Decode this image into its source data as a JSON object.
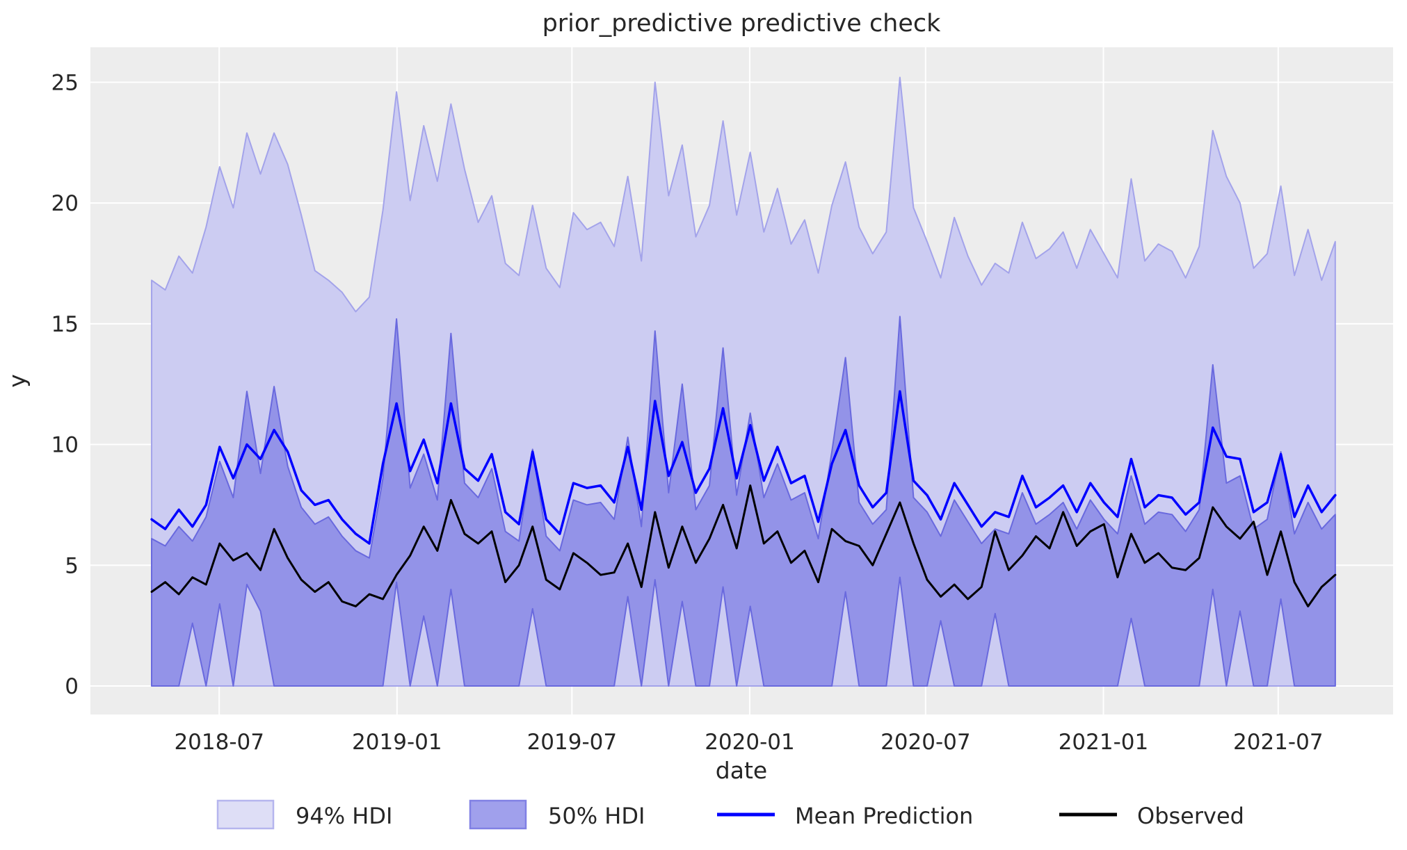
{
  "title": "prior_predictive predictive check",
  "axes": {
    "xlabel": "date",
    "ylabel": "y",
    "yticks": [
      0,
      5,
      10,
      15,
      20,
      25
    ],
    "xticks": [
      {
        "label": "2018-07",
        "f": 0.0571
      },
      {
        "label": "2019-01",
        "f": 0.2073
      },
      {
        "label": "2019-07",
        "f": 0.3551
      },
      {
        "label": "2020-01",
        "f": 0.5053
      },
      {
        "label": "2020-07",
        "f": 0.6539
      },
      {
        "label": "2021-01",
        "f": 0.8041
      },
      {
        "label": "2021-07",
        "f": 0.9518
      }
    ]
  },
  "legend": {
    "hdi94_label": "94% HDI",
    "hdi50_label": "50% HDI",
    "mean_label": "Mean Prediction",
    "observed_label": "Observed"
  },
  "colors": {
    "plot_background": "#ededed",
    "gridline": "#ffffff",
    "hdi94_fill": "#ccccf2",
    "hdi94_edge": "#a3a3ea",
    "hdi50_fill": "#9393e8",
    "hdi50_edge": "#6969de",
    "mean_line": "#0000ff",
    "observed_line": "#000000",
    "legend_hdi94_fill": "#dedef6",
    "legend_hdi94_edge": "#b5b5ee",
    "legend_hdi50_fill": "#a0a0ec",
    "legend_hdi50_edge": "#8080e4",
    "text": "#262626"
  },
  "chart_data": {
    "type": "area",
    "title": "prior_predictive predictive check",
    "xlabel": "date",
    "ylabel": "y",
    "x_range_estimate": [
      "2018-04-22",
      "2021-08-29"
    ],
    "n_points": 88,
    "ylim": [
      -1.18,
      26.45
    ],
    "grid": true,
    "legend_position": "bottom-center",
    "series": [
      {
        "name": "94% HDI",
        "type": "band",
        "lower": 0,
        "upper": [
          16.8,
          16.4,
          17.8,
          17.1,
          19.0,
          21.5,
          19.8,
          22.9,
          21.2,
          22.9,
          21.6,
          19.5,
          17.2,
          16.8,
          16.3,
          15.5,
          16.1,
          19.7,
          24.6,
          20.1,
          23.2,
          20.9,
          24.1,
          21.4,
          19.2,
          20.3,
          17.5,
          17.0,
          19.9,
          17.3,
          16.5,
          19.6,
          18.9,
          19.2,
          18.2,
          21.1,
          17.6,
          25.0,
          20.3,
          22.4,
          18.6,
          19.9,
          23.4,
          19.5,
          22.1,
          18.8,
          20.6,
          18.3,
          19.3,
          17.1,
          19.9,
          21.7,
          19.0,
          17.9,
          18.8,
          25.2,
          19.8,
          18.4,
          16.9,
          19.4,
          17.8,
          16.6,
          17.5,
          17.1,
          19.2,
          17.7,
          18.1,
          18.8,
          17.3,
          18.9,
          17.9,
          16.9,
          21.0,
          17.6,
          18.3,
          18.0,
          16.9,
          18.2,
          23.0,
          21.1,
          20.0,
          17.3,
          17.9,
          20.7,
          17.0,
          18.9,
          16.8,
          18.4
        ]
      },
      {
        "name": "50% HDI",
        "type": "band",
        "lower": [
          0,
          0,
          0,
          2.6,
          0,
          3.4,
          0,
          4.2,
          3.1,
          0,
          0,
          0,
          0,
          0,
          0,
          0,
          0,
          0,
          4.3,
          0,
          2.9,
          0,
          4.0,
          0,
          0,
          0,
          0,
          0,
          3.2,
          0,
          0,
          0,
          0,
          0,
          0,
          3.7,
          0,
          4.4,
          0,
          3.5,
          0,
          0,
          4.1,
          0,
          3.3,
          0,
          0,
          0,
          0,
          0,
          0,
          3.9,
          0,
          0,
          0,
          4.5,
          0,
          0,
          2.7,
          0,
          0,
          0,
          3.0,
          0,
          0,
          0,
          0,
          0,
          0,
          0,
          0,
          0,
          2.8,
          0,
          0,
          0,
          0,
          0,
          4.0,
          0,
          3.1,
          0,
          0,
          3.6,
          0,
          0,
          0,
          0
        ],
        "upper": [
          6.1,
          5.8,
          6.6,
          6.0,
          7.0,
          9.3,
          7.8,
          12.2,
          8.8,
          12.4,
          9.1,
          7.4,
          6.7,
          7.0,
          6.2,
          5.6,
          5.3,
          8.6,
          15.2,
          8.2,
          9.6,
          7.7,
          14.6,
          8.4,
          7.8,
          9.0,
          6.4,
          6.0,
          9.8,
          6.2,
          5.6,
          7.7,
          7.5,
          7.6,
          6.9,
          10.3,
          6.6,
          14.7,
          8.0,
          12.5,
          7.3,
          8.3,
          14.0,
          7.9,
          11.3,
          7.8,
          9.2,
          7.7,
          8.0,
          6.1,
          9.7,
          13.6,
          7.6,
          6.7,
          7.3,
          15.3,
          7.8,
          7.2,
          6.2,
          7.7,
          6.8,
          5.9,
          6.5,
          6.3,
          8.0,
          6.7,
          7.1,
          7.6,
          6.5,
          7.7,
          6.9,
          6.3,
          8.7,
          6.7,
          7.2,
          7.1,
          6.4,
          7.3,
          13.3,
          8.4,
          8.7,
          6.5,
          6.9,
          9.7,
          6.3,
          7.6,
          6.5,
          7.1
        ]
      },
      {
        "name": "Mean Prediction",
        "type": "line",
        "values": [
          6.9,
          6.5,
          7.3,
          6.6,
          7.5,
          9.9,
          8.6,
          10.0,
          9.4,
          10.6,
          9.7,
          8.1,
          7.5,
          7.7,
          6.9,
          6.3,
          5.9,
          9.2,
          11.7,
          8.9,
          10.2,
          8.4,
          11.7,
          9.0,
          8.5,
          9.6,
          7.2,
          6.7,
          9.7,
          6.9,
          6.3,
          8.4,
          8.2,
          8.3,
          7.6,
          9.9,
          7.3,
          11.8,
          8.7,
          10.1,
          8.0,
          9.0,
          11.5,
          8.6,
          10.8,
          8.5,
          9.9,
          8.4,
          8.7,
          6.8,
          9.2,
          10.6,
          8.3,
          7.4,
          8.0,
          12.2,
          8.5,
          7.9,
          6.9,
          8.4,
          7.5,
          6.6,
          7.2,
          7.0,
          8.7,
          7.4,
          7.8,
          8.3,
          7.2,
          8.4,
          7.6,
          7.0,
          9.4,
          7.4,
          7.9,
          7.8,
          7.1,
          7.6,
          10.7,
          9.5,
          9.4,
          7.2,
          7.6,
          9.6,
          7.0,
          8.3,
          7.2,
          7.9
        ]
      },
      {
        "name": "Observed",
        "type": "line",
        "values": [
          3.9,
          4.3,
          3.8,
          4.5,
          4.2,
          5.9,
          5.2,
          5.5,
          4.8,
          6.5,
          5.3,
          4.4,
          3.9,
          4.3,
          3.5,
          3.3,
          3.8,
          3.6,
          4.6,
          5.4,
          6.6,
          5.6,
          7.7,
          6.3,
          5.9,
          6.4,
          4.3,
          5.0,
          6.6,
          4.4,
          4.0,
          5.5,
          5.1,
          4.6,
          4.7,
          5.9,
          4.1,
          7.2,
          4.9,
          6.6,
          5.1,
          6.1,
          7.5,
          5.7,
          8.3,
          5.9,
          6.4,
          5.1,
          5.6,
          4.3,
          6.5,
          6.0,
          5.8,
          5.0,
          6.3,
          7.6,
          5.9,
          4.4,
          3.7,
          4.2,
          3.6,
          4.1,
          6.4,
          4.8,
          5.4,
          6.2,
          5.7,
          7.2,
          5.8,
          6.4,
          6.7,
          4.5,
          6.3,
          5.1,
          5.5,
          4.9,
          4.8,
          5.3,
          7.4,
          6.6,
          6.1,
          6.8,
          4.6,
          6.4,
          4.3,
          3.3,
          4.1,
          4.6
        ]
      }
    ]
  }
}
